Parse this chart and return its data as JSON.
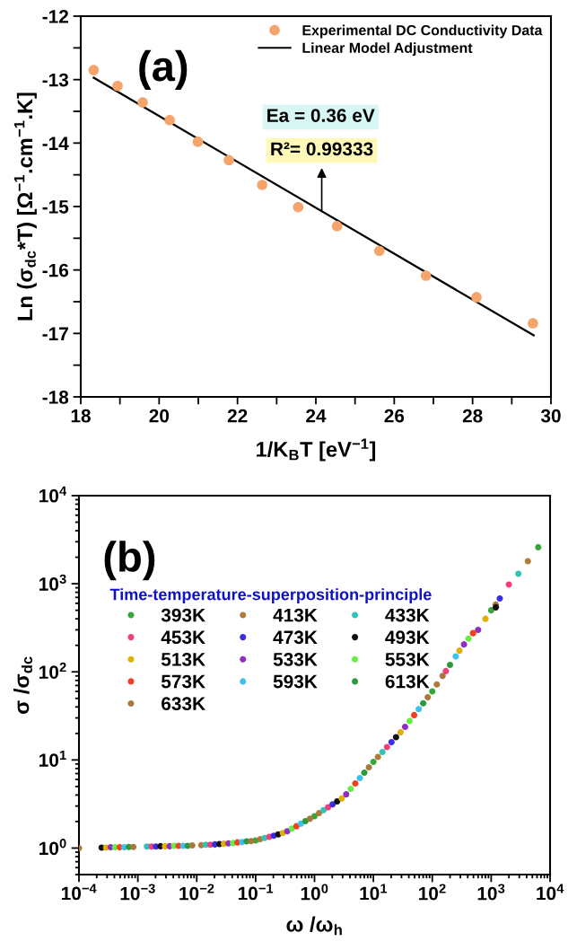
{
  "chart_data": [
    {
      "type": "scatter",
      "title": "(a)",
      "xlabel": "1/K$_{B}$T [eV$^{−1}$]",
      "ylabel": "Ln (σ$_{dc}$*T) [Ω$^{−1}$.cm$^{−1}$.K]",
      "xlim": [
        18,
        30
      ],
      "xticks": [
        18,
        {
          "value": 19,
          "label": null
        },
        20,
        {
          "value": 21,
          "label": null
        },
        22,
        {
          "value": 23,
          "label": null
        },
        24,
        {
          "value": 25,
          "label": null
        },
        26,
        {
          "value": 27,
          "label": null
        },
        28,
        {
          "value": 29,
          "label": null
        },
        30
      ],
      "ylim": [
        -18,
        -12
      ],
      "yticks": [
        -18,
        {
          "value": -17.5,
          "label": null
        },
        -17,
        {
          "value": -16.5,
          "label": null
        },
        -16,
        {
          "value": -15.5,
          "label": null
        },
        -15,
        {
          "value": -14.5,
          "label": null
        },
        -14,
        {
          "value": -13.5,
          "label": null
        },
        -13,
        {
          "value": -12.5,
          "label": null
        },
        -12
      ],
      "legend": "top right",
      "grid": false,
      "series": [
        {
          "name": "Experimental DC Conductivity Data",
          "type": "scatter",
          "marker": "circle",
          "color": "#f5a56b",
          "x": [
            18.33,
            18.94,
            19.58,
            20.27,
            20.99,
            21.78,
            22.63,
            23.55,
            24.54,
            25.62,
            26.81,
            28.1,
            29.54
          ],
          "values": [
            -12.85,
            -13.1,
            -13.36,
            -13.64,
            -13.98,
            -14.27,
            -14.66,
            -15.01,
            -15.31,
            -15.7,
            -16.09,
            -16.43,
            -16.84
          ]
        },
        {
          "name": "Linear Model Adjustment",
          "type": "line",
          "color": "#000000",
          "x": [
            18.33,
            29.56
          ],
          "values": [
            -12.97,
            -17.03
          ]
        }
      ],
      "annotations": [
        {
          "text": "R²= 0.99333",
          "x": 24.15,
          "y": -15.08
        },
        "Ea = 0.36 eV"
      ]
    },
    {
      "type": "scatter",
      "title": "(b)",
      "xlabel": "ω /ω$_{h}$",
      "ylabel": "σ /σ$_{dc}$",
      "log": "xy",
      "xlim": [
        0.0001,
        10000
      ],
      "xticks": [
        {
          "value": 0.0001,
          "label": "10$^{−4}$"
        },
        {
          "value": 0.001,
          "label": "10$^{−3}$"
        },
        {
          "value": 0.01,
          "label": "10$^{−2}$"
        },
        {
          "value": 0.1,
          "label": "10$^{−1}$"
        },
        {
          "value": 1,
          "label": "10$^{0}$"
        },
        {
          "value": 10,
          "label": "10$^{1}$"
        },
        {
          "value": 100,
          "label": "10$^{2}$"
        },
        {
          "value": 1000,
          "label": "10$^{3}$"
        },
        {
          "value": 10000,
          "label": "10$^{4}$"
        }
      ],
      "ylim": [
        0.5,
        10000
      ],
      "yticks": [
        {
          "value": 1,
          "label": "10$^{0}$"
        },
        {
          "value": 10,
          "label": "10$^{1}$"
        },
        {
          "value": 100,
          "label": "10$^{2}$"
        },
        {
          "value": 1000,
          "label": "10$^{3}$"
        },
        {
          "value": 10000,
          "label": "10$^{4}$"
        }
      ],
      "marker": "circle",
      "legend": "top left",
      "legend_title": "Time-temperature-superposition-principle",
      "grid": false,
      "series": [
        {
          "name": "393K",
          "color": "#36a83a",
          "x": [
            0.1,
            1,
            10,
            100,
            1000,
            6300
          ],
          "values": [
            1.22,
            2.3,
            9.5,
            60,
            500,
            2600
          ]
        },
        {
          "name": "413K",
          "color": "#b07a3a",
          "x": [
            0.01194,
            0.1194,
            1.194,
            11.94,
            119.4,
            1194,
            4200
          ],
          "values": [
            1.08,
            1.26,
            2.49,
            10.8,
            72,
            580,
            1800
          ]
        },
        {
          "name": "433K",
          "color": "#2ec4b6",
          "x": [
            0.001425,
            0.01425,
            0.1425,
            1.425,
            14.25,
            142.5,
            1425,
            2900
          ],
          "values": [
            1.04,
            1.09,
            1.3,
            2.69,
            12.3,
            null,
            null,
            1300
          ]
        },
        {
          "name": "453K",
          "color": "#f0407a",
          "x": [
            0.001701,
            0.01701,
            0.1701,
            1.701,
            17.01,
            170.1,
            2000
          ],
          "values": [
            1.04,
            1.09,
            1.34,
            2.9,
            14,
            102,
            980
          ]
        },
        {
          "name": "473K",
          "color": "#3a2ee0",
          "x": [
            0.002031,
            0.02031,
            0.2031,
            2.031,
            20.31,
            203.1,
            1400
          ],
          "values": [
            1.04,
            1.1,
            1.38,
            3.13,
            15.9,
            null,
            680
          ]
        },
        {
          "name": "493K",
          "color": "#111111",
          "x": [
            0.0002424,
            0.002424,
            0.02424,
            0.2424,
            2.424,
            24.24,
            242.4,
            1200
          ],
          "values": [
            1.01,
            1.05,
            1.11,
            1.43,
            3.39,
            18.1,
            null,
            540
          ]
        },
        {
          "name": "513K",
          "color": "#e0b000",
          "x": [
            0.0002894,
            0.002894,
            0.02894,
            0.2894,
            2.894,
            28.94,
            289.4,
            800
          ],
          "values": [
            1.01,
            1.05,
            1.12,
            1.48,
            3.66,
            20.6,
            174,
            400
          ]
        },
        {
          "name": "533K",
          "color": "#8e2fc0",
          "x": [
            0.0003455,
            0.003455,
            0.03455,
            0.3455,
            3.455,
            34.55,
            345.5,
            600
          ],
          "values": [
            1.02,
            1.05,
            1.13,
            1.55,
            4.07,
            23.7,
            205,
            300
          ]
        },
        {
          "name": "553K",
          "color": "#66ee44",
          "x": [
            0.0004125,
            0.004125,
            0.04125,
            0.4125,
            4.125,
            41.25,
            412.5
          ],
          "values": [
            1.02,
            1.06,
            1.14,
            1.66,
            4.7,
            27.7,
            238
          ]
        },
        {
          "name": "573K",
          "color": "#f04020",
          "x": [
            0.0004924,
            0.004924,
            0.04924,
            0.4924,
            4.924,
            49.24,
            492.4
          ],
          "values": [
            1.02,
            1.06,
            1.16,
            1.77,
            5.41,
            32.3,
            275
          ]
        },
        {
          "name": "593K",
          "color": "#3cc0f0",
          "x": [
            0.0005878,
            0.005878,
            0.05878,
            0.5878,
            5.878,
            58.78,
            250
          ],
          "values": [
            1.02,
            1.06,
            1.17,
            1.89,
            6.22,
            37.8,
            150
          ]
        },
        {
          "name": "613K",
          "color": "#2a9a3a",
          "x": [
            0.0007017,
            0.007017,
            0.07017,
            0.7017,
            7.017,
            70.17,
            200
          ],
          "values": [
            1.03,
            1.06,
            1.19,
            2.02,
            7.16,
            44,
            120
          ]
        },
        {
          "name": "633K",
          "color": "#a8783a",
          "x": [
            0.0001,
            0.0008377,
            0.008377,
            0.08377,
            0.8377,
            8.377,
            83.77,
            150
          ],
          "values": [
            1.0,
            1.03,
            1.07,
            1.2,
            2.15,
            8.26,
            51.4,
            90
          ]
        }
      ]
    }
  ]
}
